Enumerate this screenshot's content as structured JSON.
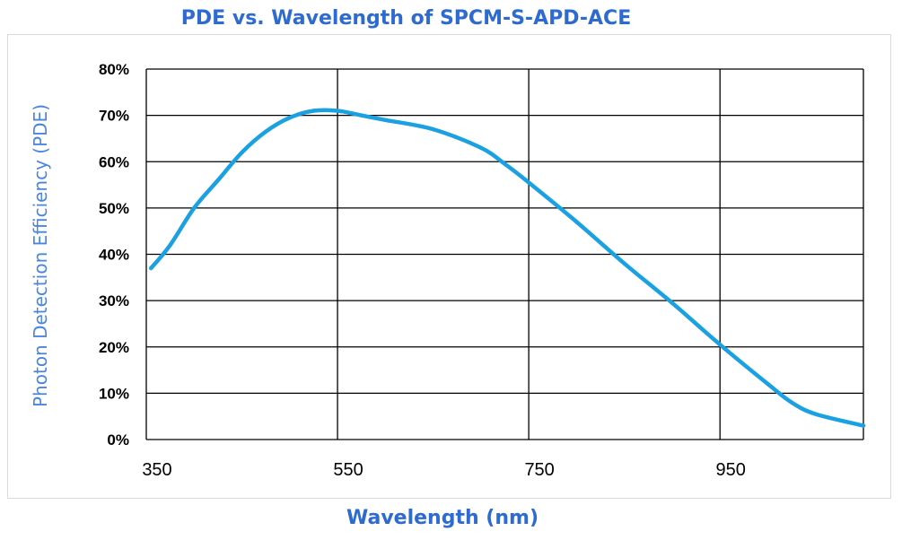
{
  "chart_data": {
    "type": "line",
    "title": "PDE vs. Wavelength of SPCM-S-APD-ACE",
    "xlabel": "Wavelength (nm)",
    "ylabel": "Photon Detection Efficiency (PDE)",
    "xlim": [
      350,
      1100
    ],
    "ylim": [
      0,
      80
    ],
    "x_ticks": [
      350,
      550,
      750,
      950
    ],
    "x_tick_labels": [
      "350",
      "550",
      "750",
      "950"
    ],
    "y_ticks": [
      0,
      10,
      20,
      30,
      40,
      50,
      60,
      70,
      80
    ],
    "y_tick_labels": [
      "0%",
      "10%",
      "20%",
      "30%",
      "40%",
      "50%",
      "60%",
      "70%",
      "80%"
    ],
    "grid": true,
    "series_color": "#1BA1E2",
    "series": [
      {
        "x": [
          355,
          375,
          400,
          425,
          450,
          475,
          500,
          525,
          550,
          575,
          600,
          650,
          700,
          725,
          750,
          800,
          850,
          900,
          950,
          1000,
          1025,
          1050,
          1100
        ],
        "values": [
          37,
          42,
          50,
          56,
          62,
          66.5,
          69.5,
          71,
          71,
          70,
          69,
          67,
          63,
          59.5,
          55.5,
          47,
          38,
          29.5,
          20.5,
          12,
          8,
          5.5,
          3
        ]
      }
    ]
  }
}
